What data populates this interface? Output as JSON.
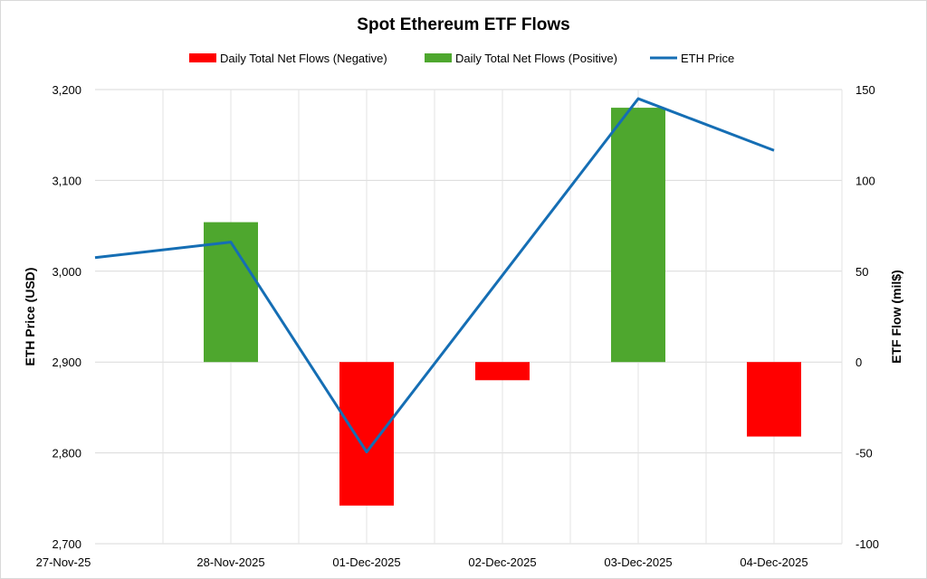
{
  "chart_data": {
    "type": "bar+line",
    "title": "Spot Ethereum ETF Flows",
    "categories": [
      "27-Nov-25",
      "28-Nov-2025",
      "01-Dec-2025",
      "02-Dec-2025",
      "03-Dec-2025",
      "04-Dec-2025"
    ],
    "bar_values": [
      null,
      77,
      -79,
      -10,
      140,
      -41
    ],
    "series": [
      {
        "name": "Daily Total Net Flows (Negative)",
        "type": "bar",
        "axis": "right",
        "color": "#ff0000",
        "values": [
          null,
          null,
          -79,
          -10,
          null,
          -41
        ]
      },
      {
        "name": "Daily Total Net Flows (Positive)",
        "type": "bar",
        "axis": "right",
        "color": "#4ea72e",
        "values": [
          null,
          77,
          null,
          null,
          140,
          null
        ]
      },
      {
        "name": "ETH Price",
        "type": "line",
        "axis": "left",
        "color": "#156eb4",
        "values": [
          3015,
          3032,
          2801,
          null,
          3190,
          3133
        ]
      }
    ],
    "ylabel": "ETH Price (USD)",
    "ylabel_right": "ETF Flow (mil$)",
    "ylim": [
      2700,
      3200
    ],
    "yticks": [
      "2,700",
      "2,800",
      "2,900",
      "3,000",
      "3,100",
      "3,200"
    ],
    "ylim_right": [
      -100,
      150
    ],
    "yticks_right": [
      "-100",
      "-50",
      "0",
      "50",
      "100",
      "150"
    ],
    "grid": true,
    "legend": "top"
  }
}
